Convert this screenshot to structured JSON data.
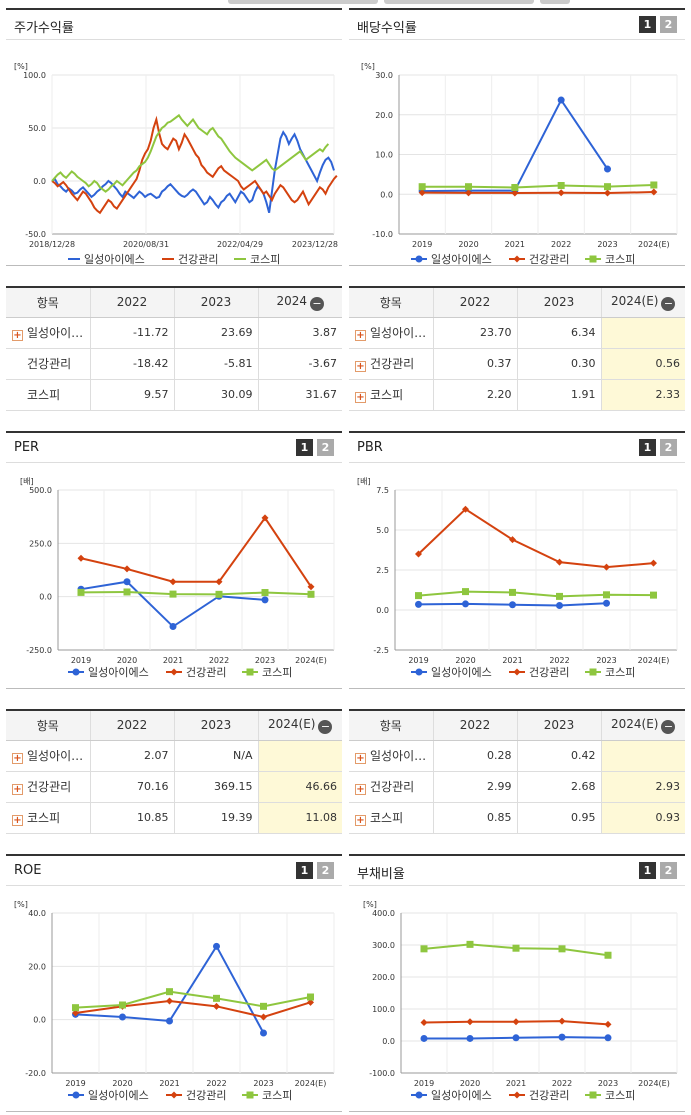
{
  "colors": {
    "s1": "#2e63d6",
    "s2": "#d4420f",
    "s3": "#8ec63f"
  },
  "legend": [
    "일성아이에스",
    "건강관리",
    "코스피"
  ],
  "panels": {
    "return": {
      "title": "주가수익률"
    },
    "dividend": {
      "title": "배당수익률",
      "btn1": "1",
      "btn2": "2"
    },
    "per": {
      "title": "PER",
      "btn1": "1",
      "btn2": "2"
    },
    "pbr": {
      "title": "PBR",
      "btn1": "1",
      "btn2": "2"
    },
    "roe": {
      "title": "ROE",
      "btn1": "1",
      "btn2": "2"
    },
    "debt": {
      "title": "부채비율",
      "btn1": "1",
      "btn2": "2"
    }
  },
  "tables": {
    "return": {
      "headers": [
        "항목",
        "2022",
        "2023",
        "2024"
      ],
      "rows": [
        {
          "name": "일성아이…",
          "v": [
            "-11.72",
            "23.69",
            "3.87"
          ]
        },
        {
          "name": "건강관리",
          "v": [
            "-18.42",
            "-5.81",
            "-3.67"
          ]
        },
        {
          "name": "코스피",
          "v": [
            "9.57",
            "30.09",
            "31.67"
          ]
        }
      ]
    },
    "dividend": {
      "headers": [
        "항목",
        "2022",
        "2023",
        "2024(E)"
      ],
      "rows": [
        {
          "name": "일성아이…",
          "v": [
            "23.70",
            "6.34",
            ""
          ]
        },
        {
          "name": "건강관리",
          "v": [
            "0.37",
            "0.30",
            "0.56"
          ]
        },
        {
          "name": "코스피",
          "v": [
            "2.20",
            "1.91",
            "2.33"
          ]
        }
      ]
    },
    "per": {
      "headers": [
        "항목",
        "2022",
        "2023",
        "2024(E)"
      ],
      "rows": [
        {
          "name": "일성아이…",
          "v": [
            "2.07",
            "N/A",
            ""
          ]
        },
        {
          "name": "건강관리",
          "v": [
            "70.16",
            "369.15",
            "46.66"
          ]
        },
        {
          "name": "코스피",
          "v": [
            "10.85",
            "19.39",
            "11.08"
          ]
        }
      ]
    },
    "pbr": {
      "headers": [
        "항목",
        "2022",
        "2023",
        "2024(E)"
      ],
      "rows": [
        {
          "name": "일성아이…",
          "v": [
            "0.28",
            "0.42",
            ""
          ]
        },
        {
          "name": "건강관리",
          "v": [
            "2.99",
            "2.68",
            "2.93"
          ]
        },
        {
          "name": "코스피",
          "v": [
            "0.85",
            "0.95",
            "0.93"
          ]
        }
      ]
    }
  },
  "chart_data": [
    {
      "id": "return",
      "type": "line",
      "title": "주가수익률",
      "unit": "[%]",
      "ylim": [
        -50,
        100
      ],
      "yticks": [
        "100.0",
        "50.0",
        "0.0",
        "-50.0"
      ],
      "xticks": [
        "2018/12/28",
        "2020/08/31",
        "2022/04/29",
        "2023/12/28"
      ],
      "series": [
        {
          "name": "일성아이에스",
          "values": [
            0,
            2,
            -3,
            -5,
            -8,
            -10,
            -7,
            -9,
            -12,
            -11,
            -8,
            -6,
            -9,
            -12,
            -15,
            -13,
            -10,
            -8,
            -5,
            -3,
            0,
            -2,
            -5,
            -8,
            -12,
            -15,
            -10,
            -12,
            -14,
            -16,
            -13,
            -10,
            -12,
            -15,
            -13,
            -12,
            -14,
            -16,
            -15,
            -10,
            -8,
            -5,
            -3,
            -6,
            -9,
            -12,
            -14,
            -15,
            -13,
            -10,
            -8,
            -10,
            -14,
            -18,
            -22,
            -20,
            -15,
            -18,
            -22,
            -25,
            -20,
            -18,
            -14,
            -12,
            -16,
            -20,
            -15,
            -10,
            -12,
            -16,
            -20,
            -18,
            -10,
            -5,
            -8,
            -12,
            -20,
            -30,
            -10,
            10,
            25,
            40,
            46,
            42,
            35,
            40,
            44,
            38,
            30,
            25,
            20,
            15,
            10,
            5,
            0,
            8,
            15,
            20,
            22,
            18,
            10
          ]
        },
        {
          "name": "건강관리",
          "values": [
            0,
            -2,
            -5,
            -3,
            -1,
            -4,
            -8,
            -12,
            -15,
            -18,
            -14,
            -10,
            -12,
            -16,
            -20,
            -25,
            -28,
            -30,
            -26,
            -22,
            -18,
            -20,
            -24,
            -26,
            -22,
            -18,
            -14,
            -10,
            -6,
            -2,
            2,
            10,
            20,
            26,
            30,
            38,
            50,
            58,
            45,
            35,
            32,
            30,
            35,
            40,
            38,
            30,
            36,
            44,
            40,
            35,
            30,
            25,
            22,
            15,
            12,
            8,
            6,
            4,
            8,
            12,
            14,
            10,
            8,
            6,
            4,
            2,
            0,
            -5,
            -8,
            -6,
            -4,
            -2,
            0,
            -4,
            -8,
            -12,
            -10,
            -14,
            -18,
            -12,
            -8,
            -4,
            -6,
            -10,
            -14,
            -18,
            -20,
            -18,
            -14,
            -10,
            -16,
            -22,
            -18,
            -14,
            -10,
            -6,
            -8,
            -12,
            -6,
            -2,
            2,
            5
          ]
        },
        {
          "name": "코스피",
          "values": [
            0,
            3,
            6,
            8,
            5,
            3,
            6,
            9,
            7,
            4,
            2,
            0,
            -2,
            -5,
            -3,
            0,
            -2,
            -6,
            -8,
            -10,
            -8,
            -5,
            -3,
            0,
            -2,
            -4,
            -1,
            2,
            5,
            8,
            10,
            14,
            16,
            18,
            22,
            28,
            35,
            42,
            46,
            50,
            52,
            55,
            56,
            58,
            60,
            62,
            58,
            55,
            52,
            55,
            58,
            54,
            50,
            48,
            46,
            44,
            48,
            50,
            46,
            42,
            40,
            36,
            32,
            28,
            25,
            22,
            20,
            18,
            16,
            14,
            12,
            10,
            12,
            14,
            16,
            18,
            20,
            16,
            12,
            10,
            12,
            14,
            16,
            18,
            20,
            22,
            24,
            26,
            28,
            24,
            20,
            22,
            24,
            26,
            28,
            30,
            28,
            32,
            35
          ]
        }
      ]
    },
    {
      "id": "dividend",
      "type": "line",
      "title": "배당수익률",
      "unit": "[%]",
      "ylim": [
        -10,
        30
      ],
      "yticks": [
        "30.0",
        "20.0",
        "10.0",
        "0.0",
        "-10.0"
      ],
      "categories": [
        "2019",
        "2020",
        "2021",
        "2022",
        "2023",
        "2024(E)"
      ],
      "series": [
        {
          "name": "일성아이에스",
          "values": [
            0.8,
            0.9,
            0.9,
            23.7,
            6.34,
            null
          ]
        },
        {
          "name": "건강관리",
          "values": [
            0.4,
            0.35,
            0.33,
            0.37,
            0.3,
            0.56
          ]
        },
        {
          "name": "코스피",
          "values": [
            1.9,
            1.9,
            1.7,
            2.2,
            1.91,
            2.33
          ]
        }
      ]
    },
    {
      "id": "per",
      "type": "line",
      "title": "PER",
      "unit": "[배]",
      "ylim": [
        -250,
        500
      ],
      "yticks": [
        "500.0",
        "250.0",
        "0.0",
        "-250.0"
      ],
      "categories": [
        "2019",
        "2020",
        "2021",
        "2022",
        "2023",
        "2024(E)"
      ],
      "series": [
        {
          "name": "일성아이에스",
          "values": [
            35,
            70,
            -140,
            2.07,
            -15,
            null
          ]
        },
        {
          "name": "건강관리",
          "values": [
            180,
            130,
            70,
            70.16,
            369.15,
            46.66
          ]
        },
        {
          "name": "코스피",
          "values": [
            20,
            22,
            12,
            10.85,
            19.39,
            11.08
          ]
        }
      ]
    },
    {
      "id": "pbr",
      "type": "line",
      "title": "PBR",
      "unit": "[배]",
      "ylim": [
        -2.5,
        7.5
      ],
      "yticks": [
        "7.5",
        "5.0",
        "2.5",
        "0.0",
        "-2.5"
      ],
      "categories": [
        "2019",
        "2020",
        "2021",
        "2022",
        "2023",
        "2024(E)"
      ],
      "series": [
        {
          "name": "일성아이에스",
          "values": [
            0.35,
            0.38,
            0.33,
            0.28,
            0.42,
            null
          ]
        },
        {
          "name": "건강관리",
          "values": [
            3.5,
            6.3,
            4.4,
            2.99,
            2.68,
            2.93
          ]
        },
        {
          "name": "코스피",
          "values": [
            0.9,
            1.15,
            1.1,
            0.85,
            0.95,
            0.93
          ]
        }
      ]
    },
    {
      "id": "roe",
      "type": "line",
      "title": "ROE",
      "unit": "[%]",
      "ylim": [
        -20,
        40
      ],
      "yticks": [
        "40.0",
        "20.0",
        "0.0",
        "-20.0"
      ],
      "categories": [
        "2019",
        "2020",
        "2021",
        "2022",
        "2023",
        "2024(E)"
      ],
      "series": [
        {
          "name": "일성아이에스",
          "values": [
            2,
            1,
            -0.5,
            27.5,
            -5,
            null
          ]
        },
        {
          "name": "건강관리",
          "values": [
            2.5,
            5,
            7,
            5,
            1,
            6.5
          ]
        },
        {
          "name": "코스피",
          "values": [
            4.5,
            5.5,
            10.5,
            8,
            5,
            8.5
          ]
        }
      ]
    },
    {
      "id": "debt",
      "type": "line",
      "title": "부채비율",
      "unit": "[%]",
      "ylim": [
        -100,
        400
      ],
      "yticks": [
        "400.0",
        "300.0",
        "200.0",
        "100.0",
        "0.0",
        "-100.0"
      ],
      "categories": [
        "2019",
        "2020",
        "2021",
        "2022",
        "2023",
        "2024(E)"
      ],
      "series": [
        {
          "name": "일성아이에스",
          "values": [
            8,
            8,
            10,
            12,
            10,
            null
          ]
        },
        {
          "name": "건강관리",
          "values": [
            58,
            60,
            60,
            62,
            52,
            null
          ]
        },
        {
          "name": "코스피",
          "values": [
            288,
            302,
            290,
            288,
            268,
            null
          ]
        }
      ]
    }
  ]
}
